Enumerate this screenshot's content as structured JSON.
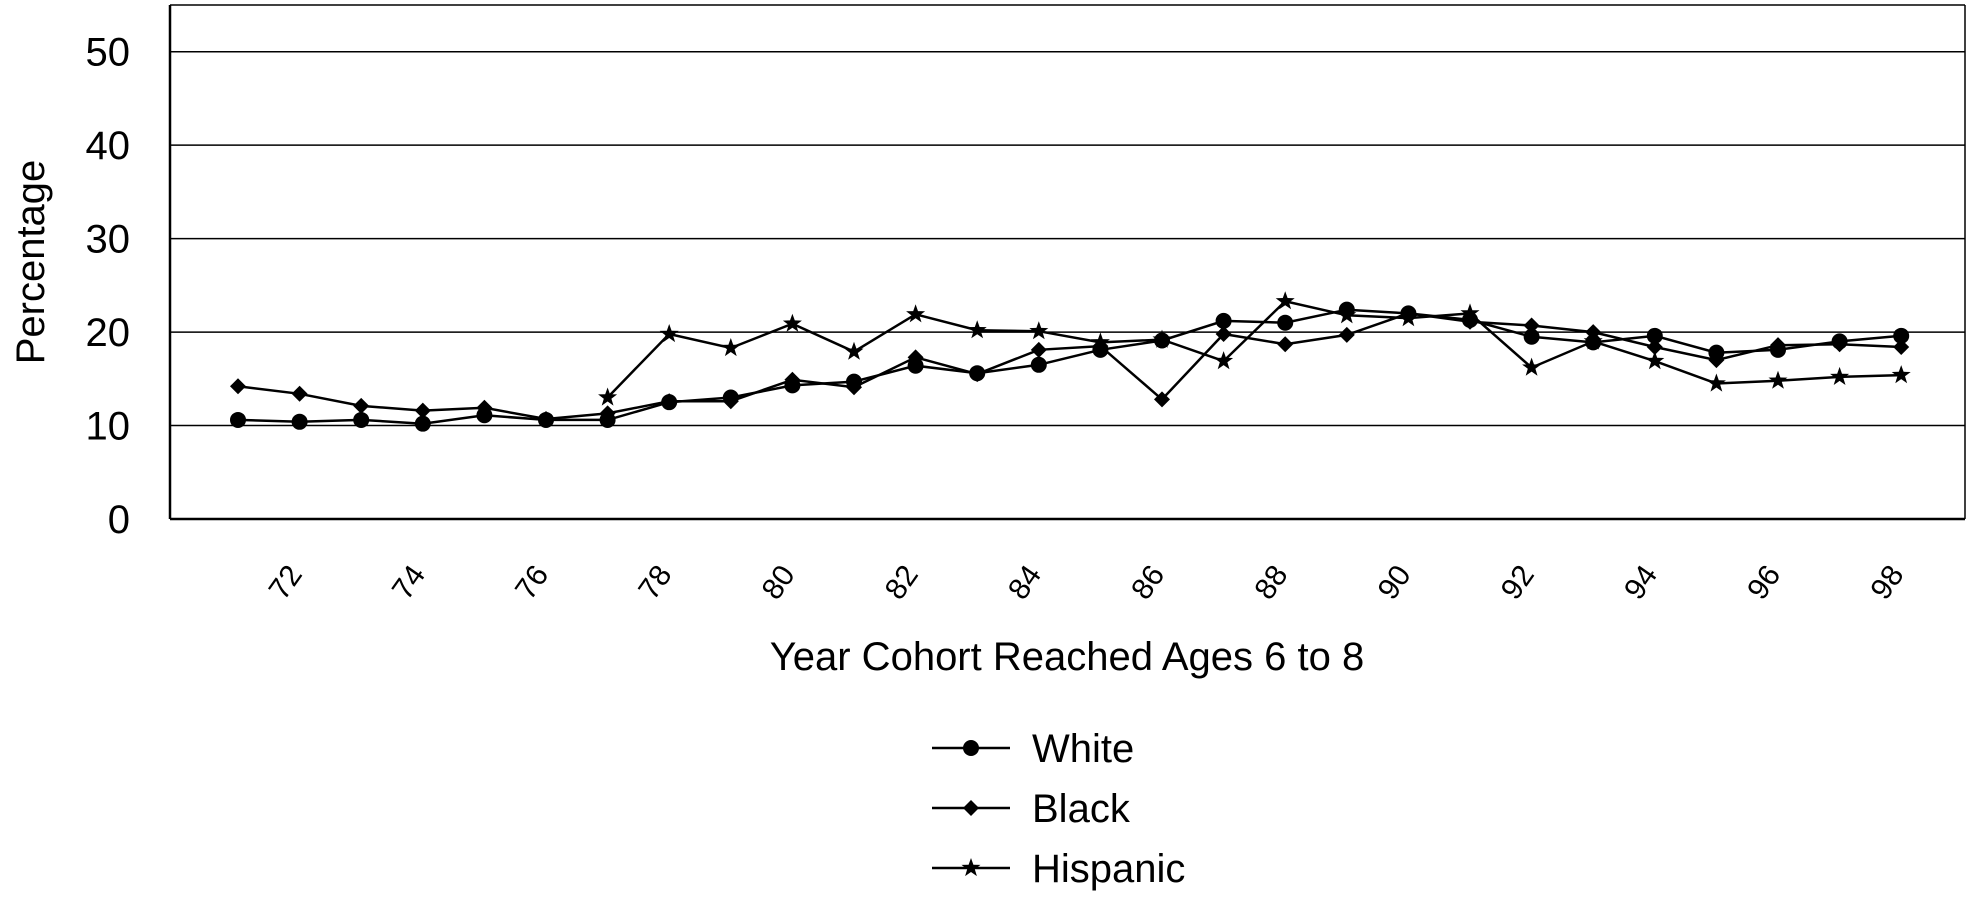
{
  "chart_data": {
    "type": "line",
    "xlabel": "Year Cohort Reached Ages 6 to 8",
    "ylabel": "Percentage",
    "ylim": [
      0,
      55
    ],
    "yticks": [
      0,
      10,
      20,
      30,
      40,
      50
    ],
    "x": [
      71,
      72,
      73,
      74,
      75,
      76,
      77,
      78,
      79,
      80,
      81,
      82,
      83,
      84,
      85,
      86,
      87,
      88,
      89,
      90,
      91,
      92,
      93,
      94,
      95,
      96,
      97,
      98
    ],
    "xtick_labels": [
      "72",
      "74",
      "76",
      "78",
      "80",
      "82",
      "84",
      "86",
      "88",
      "90",
      "92",
      "94",
      "96",
      "98"
    ],
    "grid": "horizontal",
    "legend_position": "bottom-center",
    "series": [
      {
        "name": "White",
        "marker": "circle",
        "values": [
          10.6,
          10.4,
          10.6,
          10.2,
          11.1,
          10.6,
          10.6,
          12.5,
          13.0,
          14.3,
          14.7,
          16.4,
          15.6,
          16.5,
          18.1,
          19.1,
          21.2,
          21.0,
          22.4,
          22.0,
          21.3,
          19.5,
          18.9,
          19.6,
          17.8,
          18.1,
          19.0,
          19.6
        ]
      },
      {
        "name": "Black",
        "marker": "diamond",
        "values": [
          14.2,
          13.4,
          12.1,
          11.6,
          11.9,
          10.7,
          11.3,
          12.6,
          12.6,
          14.9,
          14.1,
          17.3,
          15.5,
          18.1,
          18.5,
          12.8,
          19.8,
          18.7,
          19.7,
          22.0,
          21.1,
          20.7,
          20.0,
          18.4,
          17.0,
          18.6,
          18.7,
          18.4
        ]
      },
      {
        "name": "Hispanic",
        "marker": "star",
        "values": [
          null,
          null,
          null,
          null,
          null,
          null,
          13.0,
          19.8,
          18.3,
          20.9,
          17.9,
          21.9,
          20.2,
          20.1,
          18.9,
          19.2,
          16.9,
          23.3,
          21.8,
          21.5,
          22.0,
          16.2,
          19.0,
          16.9,
          14.5,
          14.8,
          15.2,
          15.4
        ]
      }
    ]
  }
}
